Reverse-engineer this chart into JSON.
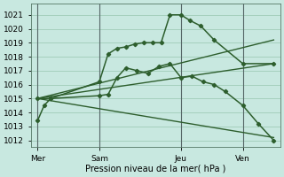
{
  "background_color": "#c8e8e0",
  "grid_color": "#a0ccb8",
  "line_color": "#2d5e2d",
  "ylim": [
    1011.5,
    1021.8
  ],
  "yticks": [
    1012,
    1013,
    1014,
    1015,
    1016,
    1017,
    1018,
    1019,
    1020,
    1021
  ],
  "xlabel": "Pression niveau de la mer( hPa )",
  "xtick_labels": [
    "Mer",
    "Sam",
    "Jeu",
    "Ven"
  ],
  "xtick_positions": [
    0,
    28,
    65,
    93
  ],
  "xlim": [
    -3,
    110
  ],
  "vline_positions": [
    0,
    28,
    65,
    93
  ],
  "series_with_markers": [
    {
      "x": [
        0,
        3,
        6,
        28,
        32,
        36,
        40,
        44,
        48,
        52,
        56,
        60,
        65,
        69,
        74,
        80,
        93,
        107
      ],
      "y": [
        1013.4,
        1014.5,
        1015.0,
        1016.2,
        1018.2,
        1018.6,
        1018.7,
        1018.9,
        1019.0,
        1019.0,
        1019.0,
        1021.0,
        1021.0,
        1020.6,
        1020.2,
        1019.2,
        1017.5,
        1017.5
      ]
    },
    {
      "x": [
        0,
        6,
        28,
        32,
        36,
        40,
        45,
        50,
        55,
        60,
        65,
        70,
        75,
        80,
        85,
        93,
        100,
        107
      ],
      "y": [
        1015.0,
        1015.0,
        1015.2,
        1015.3,
        1016.5,
        1017.2,
        1017.0,
        1016.8,
        1017.3,
        1017.5,
        1016.5,
        1016.6,
        1016.2,
        1016.0,
        1015.5,
        1014.5,
        1013.2,
        1012.0
      ]
    }
  ],
  "series_lines": [
    {
      "x": [
        0,
        107
      ],
      "y": [
        1015.0,
        1019.2
      ],
      "lw": 1.0,
      "ls": "-"
    },
    {
      "x": [
        0,
        107
      ],
      "y": [
        1015.0,
        1017.5
      ],
      "lw": 1.0,
      "ls": "-"
    },
    {
      "x": [
        0,
        107
      ],
      "y": [
        1015.0,
        1012.2
      ],
      "lw": 1.0,
      "ls": "-"
    }
  ]
}
